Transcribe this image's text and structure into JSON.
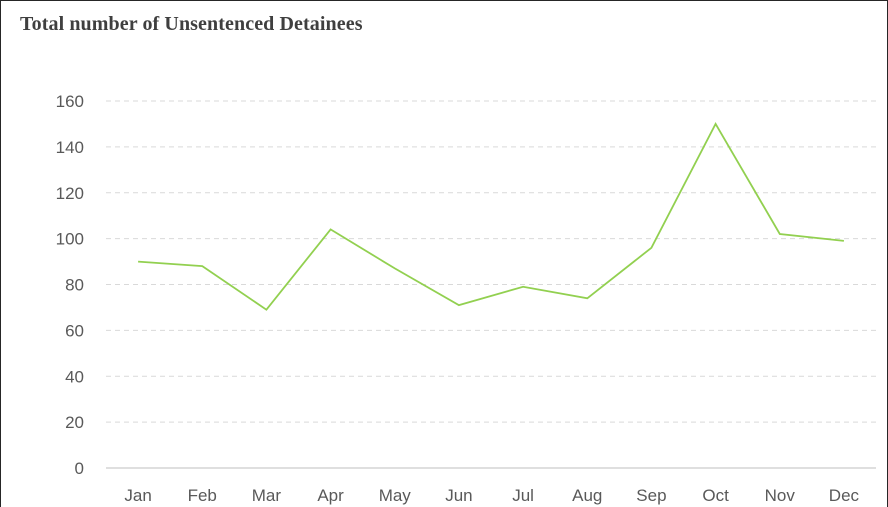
{
  "chart_data": {
    "type": "line",
    "title": "Total number  of Unsentenced  Detainees",
    "xlabel": "",
    "ylabel": "",
    "categories": [
      "Jan",
      "Feb",
      "Mar",
      "Apr",
      "May",
      "Jun",
      "Jul",
      "Aug",
      "Sep",
      "Oct",
      "Nov",
      "Dec"
    ],
    "series": [
      {
        "values": [
          90,
          88,
          69,
          104,
          87,
          71,
          79,
          74,
          96,
          150,
          102,
          99
        ],
        "color": "#92d050"
      }
    ],
    "ylim": [
      0,
      160
    ],
    "yticks": [
      "0",
      "20",
      "40",
      "60",
      "80",
      "100",
      "120",
      "140",
      "160"
    ],
    "grid": true,
    "legend": "none"
  }
}
